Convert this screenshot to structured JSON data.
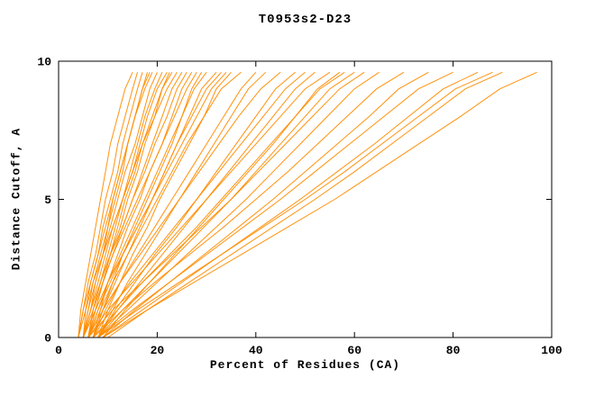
{
  "chart_data": {
    "type": "line",
    "title": "T0953s2-D23",
    "xlabel": "Percent of Residues (CA)",
    "ylabel": "Distance Cutoff, A",
    "xlim": [
      0,
      100
    ],
    "ylim": [
      0,
      10
    ],
    "xticks": [
      0,
      20,
      40,
      60,
      80,
      100
    ],
    "yticks": [
      0,
      5,
      10
    ],
    "grid": false,
    "legend": false,
    "line_color": "#ff8c00",
    "axis_color": "#000000",
    "cutoffs": [
      0,
      1,
      2,
      3,
      4,
      5,
      6,
      7,
      8,
      9,
      9.6
    ],
    "series": [
      {
        "values": [
          4,
          4.5,
          5.5,
          6.5,
          7.5,
          8.5,
          9.5,
          10.5,
          12,
          13.5,
          15
        ]
      },
      {
        "values": [
          4,
          5,
          6,
          7.5,
          8.5,
          9.5,
          11,
          12,
          13.5,
          15,
          16
        ]
      },
      {
        "values": [
          5,
          5.5,
          6.5,
          8,
          9,
          10.5,
          12,
          13,
          14.5,
          16,
          17
        ]
      },
      {
        "values": [
          5,
          6,
          7,
          8.5,
          10,
          11,
          12.5,
          14,
          15.5,
          17,
          18
        ]
      },
      {
        "values": [
          4,
          5,
          6.5,
          8,
          9.5,
          11,
          12.5,
          14,
          15.5,
          17.5,
          19
        ]
      },
      {
        "values": [
          5,
          6.5,
          7.5,
          9,
          10,
          11.5,
          13,
          14,
          15.5,
          17,
          18.5
        ]
      },
      {
        "values": [
          5,
          6,
          7.5,
          9,
          10.5,
          12,
          13.5,
          15.5,
          17,
          18.5,
          20
        ]
      },
      {
        "values": [
          6,
          7,
          8.5,
          10,
          11.5,
          13,
          14.5,
          16,
          17.5,
          19.5,
          21
        ]
      },
      {
        "values": [
          5,
          6.5,
          8,
          9.5,
          11,
          13,
          15,
          16.5,
          18,
          20,
          22
        ]
      },
      {
        "values": [
          6,
          7.5,
          9,
          10.5,
          12,
          13.5,
          15.5,
          17,
          19,
          21,
          22.5
        ]
      },
      {
        "values": [
          6,
          7,
          8.5,
          10.5,
          12.5,
          14,
          16,
          17.5,
          19.5,
          21,
          23
        ]
      },
      {
        "values": [
          4,
          5.5,
          7,
          9,
          11,
          13,
          15,
          17,
          19.5,
          22,
          24
        ]
      },
      {
        "values": [
          6,
          7.5,
          9,
          11,
          13,
          15,
          17,
          19,
          21,
          23,
          25
        ]
      },
      {
        "values": [
          5,
          6.5,
          8.5,
          10.5,
          13,
          15,
          17.5,
          19.5,
          22,
          24,
          26
        ]
      },
      {
        "values": [
          7,
          8.5,
          10,
          12,
          14,
          16.5,
          18.5,
          21,
          23,
          25,
          27
        ]
      },
      {
        "values": [
          5,
          7,
          9,
          11,
          13.5,
          16,
          18.5,
          21,
          23.5,
          26,
          28
        ]
      },
      {
        "values": [
          7,
          9,
          11,
          13,
          15.5,
          18,
          20.5,
          23,
          25,
          27,
          29
        ]
      },
      {
        "values": [
          6,
          8,
          10,
          12.5,
          15,
          17.5,
          20,
          22.5,
          25,
          27.5,
          30
        ]
      },
      {
        "values": [
          7,
          9,
          11.5,
          14,
          16.5,
          19,
          21.5,
          24,
          26.5,
          29,
          32
        ]
      },
      {
        "values": [
          6,
          8,
          10.5,
          13,
          16,
          19,
          21.5,
          24,
          27,
          30,
          33
        ]
      },
      {
        "values": [
          5,
          7.5,
          10,
          13,
          16,
          19,
          22,
          25,
          28,
          31,
          34
        ]
      },
      {
        "values": [
          8,
          10,
          12.5,
          15,
          18,
          20.5,
          23.5,
          26.5,
          29.5,
          32,
          35
        ]
      },
      {
        "values": [
          6,
          8.5,
          11,
          14,
          17,
          20,
          23,
          26,
          29.5,
          33,
          37
        ]
      },
      {
        "values": [
          7,
          9.5,
          12.5,
          16,
          19.5,
          23,
          26.5,
          30,
          33.5,
          37,
          40
        ]
      },
      {
        "values": [
          8,
          11,
          14,
          17.5,
          21,
          24.5,
          28,
          31.5,
          35,
          38.5,
          42
        ]
      },
      {
        "values": [
          6,
          9,
          12.5,
          16.5,
          20.5,
          24.5,
          28.5,
          32.5,
          36.5,
          41,
          45
        ]
      },
      {
        "values": [
          8,
          11.5,
          15.5,
          19.5,
          24,
          28,
          32,
          36,
          40,
          44,
          48
        ]
      },
      {
        "values": [
          7,
          10.5,
          14.5,
          19,
          23.5,
          28,
          32.5,
          37,
          41.5,
          46,
          50
        ]
      },
      {
        "values": [
          8,
          12,
          16.5,
          21,
          25.5,
          30,
          34.5,
          39,
          43.5,
          48,
          52
        ]
      },
      {
        "values": [
          6,
          10,
          15,
          20,
          25,
          30,
          35,
          40,
          45,
          50,
          55
        ]
      },
      {
        "values": [
          9,
          13.5,
          18.5,
          23.5,
          28.5,
          33.5,
          38.5,
          43.5,
          48,
          52.5,
          57
        ]
      },
      {
        "values": [
          7,
          12,
          17,
          22.5,
          28,
          33,
          38,
          43,
          48,
          53,
          58
        ]
      },
      {
        "values": [
          8,
          13,
          18.5,
          24,
          29.5,
          35,
          40,
          45,
          50,
          55,
          60
        ]
      },
      {
        "values": [
          6,
          11,
          17,
          23,
          29,
          35,
          40.5,
          46,
          51.5,
          57,
          62
        ]
      },
      {
        "values": [
          8,
          14,
          20,
          26,
          32,
          38,
          43.5,
          49,
          54.5,
          60,
          65
        ]
      },
      {
        "values": [
          7,
          13,
          19.5,
          26.5,
          33.5,
          40,
          46.5,
          52.5,
          58.5,
          64.5,
          70
        ]
      },
      {
        "values": [
          9,
          15.5,
          22.5,
          29.5,
          36.5,
          43.5,
          50,
          56.5,
          63,
          69,
          75
        ]
      },
      {
        "values": [
          8,
          15,
          22.5,
          30,
          37.5,
          45,
          52,
          59,
          66,
          73,
          80
        ]
      },
      {
        "values": [
          9,
          17,
          25,
          33,
          41,
          49,
          56.5,
          64,
          71,
          78,
          85
        ]
      },
      {
        "values": [
          8,
          16,
          24.5,
          33,
          41.5,
          50,
          58,
          65.5,
          73,
          80.5,
          88
        ]
      },
      {
        "values": [
          10,
          18,
          26.5,
          35,
          43.5,
          52,
          60,
          67.5,
          75,
          82.5,
          90
        ]
      },
      {
        "values": [
          9,
          18,
          27.5,
          37,
          46.5,
          56,
          64.5,
          73,
          81.5,
          89.5,
          97
        ]
      }
    ]
  }
}
